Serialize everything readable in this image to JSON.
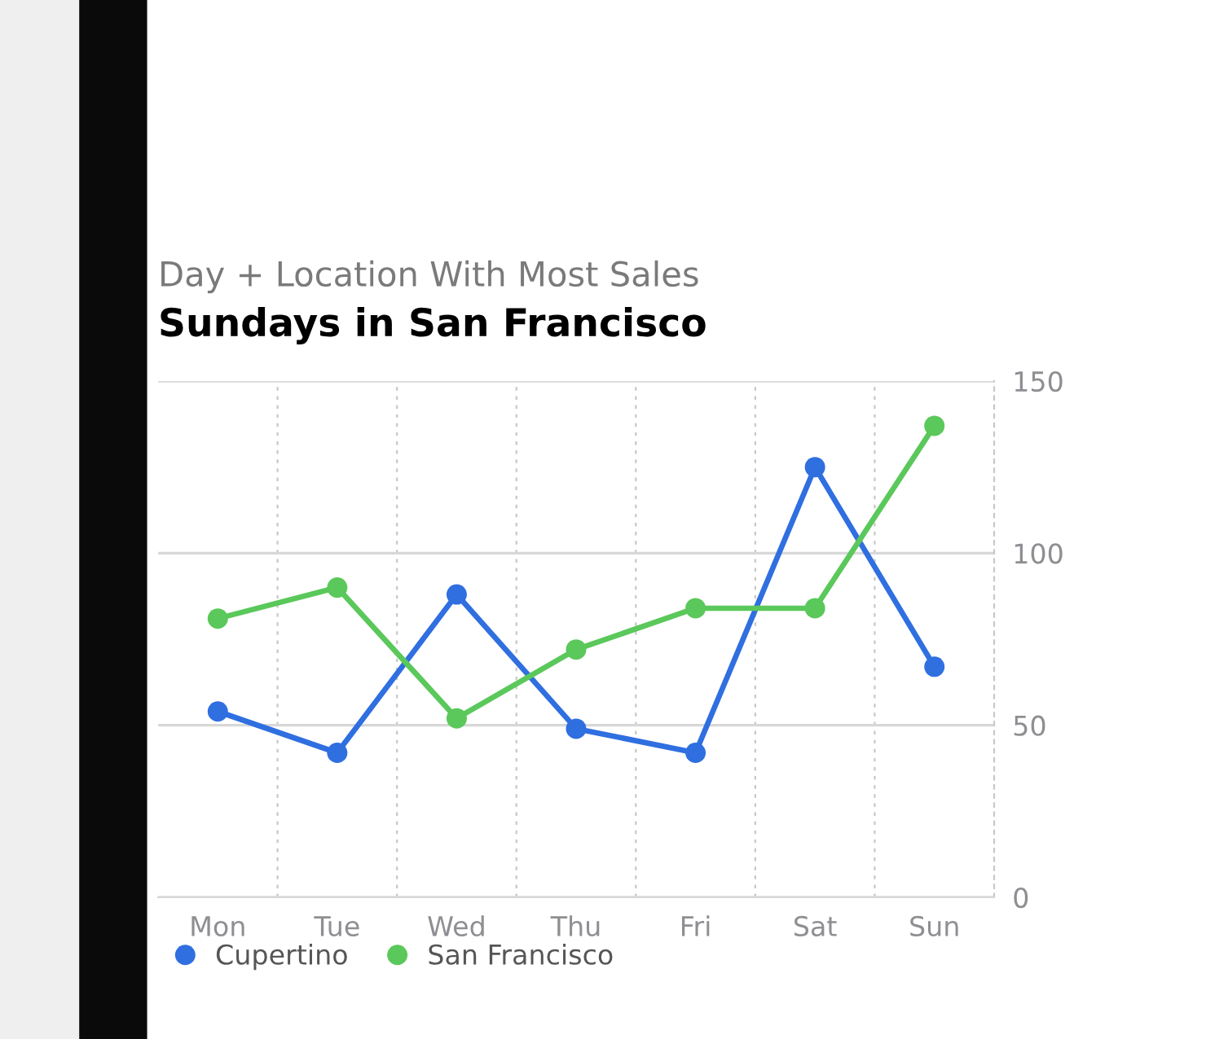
{
  "chart_data": {
    "type": "line",
    "subtitle": "Day + Location With Most Sales",
    "title": "Sundays in San Francisco",
    "categories": [
      "Mon",
      "Tue",
      "Wed",
      "Thu",
      "Fri",
      "Sat",
      "Sun"
    ],
    "series": [
      {
        "name": "Cupertino",
        "color": "#2f6fe0",
        "values": [
          54,
          42,
          88,
          49,
          42,
          125,
          67
        ]
      },
      {
        "name": "San Francisco",
        "color": "#5ac85a",
        "values": [
          81,
          90,
          52,
          72,
          84,
          84,
          137
        ]
      }
    ],
    "ylim": [
      0,
      150
    ],
    "yticks": [
      0,
      50,
      100,
      150
    ],
    "grid": true,
    "legend": "bottom",
    "marker": "circle",
    "line_style": "solid"
  }
}
